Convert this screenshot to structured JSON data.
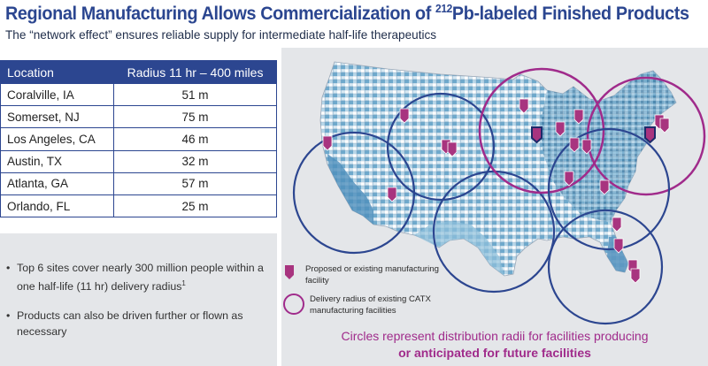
{
  "title": {
    "prefix": "Regional Manufacturing Allows Commercialization of ",
    "isotope_sup": "212",
    "suffix": "Pb-labeled Finished Products"
  },
  "subtitle": "The “network effect” ensures reliable supply for intermediate half-life therapeutics",
  "table": {
    "headers": [
      "Location",
      "Radius 11 hr – 400 miles"
    ],
    "rows": [
      {
        "location": "Coralville, IA",
        "radius": "51 m"
      },
      {
        "location": "Somerset, NJ",
        "radius": "75 m"
      },
      {
        "location": "Los Angeles, CA",
        "radius": "46 m"
      },
      {
        "location": "Austin, TX",
        "radius": "32 m"
      },
      {
        "location": "Atlanta, GA",
        "radius": "57 m"
      },
      {
        "location": "Orlando, FL",
        "radius": "25 m"
      }
    ]
  },
  "notes": {
    "bullet1_text": "Top 6 sites cover nearly 300 million people within a one half-life (11 hr) delivery radius",
    "bullet1_sup": "1",
    "bullet2_text": "Products can also be driven further or flown as necessary",
    "bullet_char": "•"
  },
  "legend": {
    "facility_label": "Proposed or existing manufacturing facility",
    "radius_label": "Delivery radius of existing CATX manufacturing facilities"
  },
  "caption": {
    "line1": "Circles represent distribution radii for facilities producing",
    "line2": "or anticipated for future facilities"
  },
  "colors": {
    "navy": "#2c4690",
    "magenta": "#a02b8b",
    "pin": "#a8347f"
  }
}
